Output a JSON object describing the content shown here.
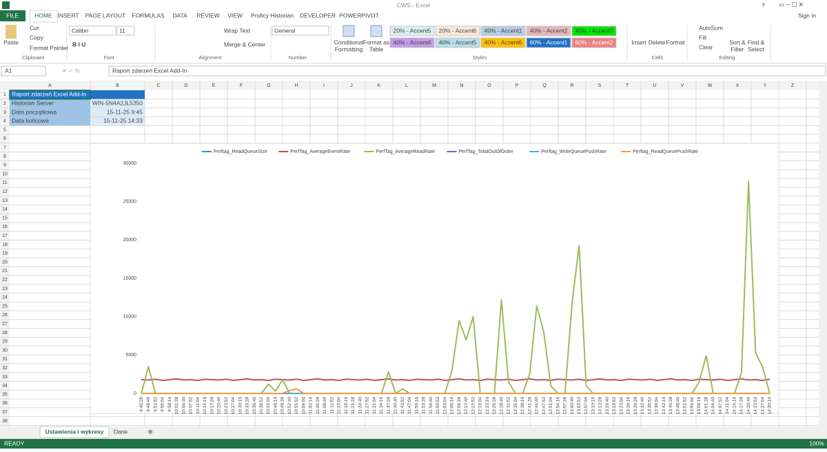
{
  "window": {
    "title": "CWS - Excel",
    "help": "?",
    "sign_in": "Sign in"
  },
  "tabs": [
    "FILE",
    "HOME",
    "INSERT",
    "PAGE LAYOUT",
    "FORMULAS",
    "DATA",
    "REVIEW",
    "VIEW",
    "Proficy Historian",
    "DEVELOPER",
    "POWERPIVOT"
  ],
  "ribbon": {
    "clipboard": {
      "paste": "Paste",
      "cut": "Cut",
      "copy": "Copy",
      "format_painter": "Format Painter",
      "label": "Clipboard"
    },
    "font": {
      "name": "Calibri",
      "size": "11",
      "label": "Font"
    },
    "alignment": {
      "wrap_text": "Wrap Text",
      "merge": "Merge & Center",
      "label": "Alignment"
    },
    "number": {
      "format": "General",
      "label": "Number"
    },
    "styles": {
      "conditional": [
        "Conditional",
        "Formatting"
      ],
      "format_table": [
        "Format as",
        "Table"
      ],
      "gallery": [
        "20% - Accent5",
        "20% - Accent6",
        "40% - Accent1",
        "40% - Accent2",
        "40% - Accent3",
        "40% - Accent4",
        "40% - Accent5",
        "40% - Accent6",
        "60% - Accent1",
        "60% - Accent2"
      ],
      "label": "Styles"
    },
    "cells": {
      "insert": "Insert",
      "delete": "Delete",
      "format": "Format",
      "label": "Cells"
    },
    "editing": {
      "autosum": "AutoSum",
      "fill": "Fill",
      "clear": "Clear",
      "sort": [
        "Sort &",
        "Filter"
      ],
      "find": [
        "Find &",
        "Select"
      ],
      "label": "Editing"
    }
  },
  "formula_bar": {
    "name_box": "A1",
    "content": "Raport zdarzeń Excel Add-In"
  },
  "columns": [
    "A",
    "B",
    "C",
    "D",
    "E",
    "F",
    "G",
    "H",
    "I",
    "J",
    "K",
    "L",
    "M",
    "N",
    "O",
    "P",
    "Q",
    "R",
    "S",
    "T",
    "U",
    "V",
    "W",
    "X",
    "Y",
    "Z"
  ],
  "rows": [
    1,
    2,
    3,
    4,
    5,
    6,
    7,
    8,
    9,
    10,
    11,
    12,
    13,
    14,
    15,
    16,
    17,
    18,
    19,
    20,
    21,
    22,
    23,
    24,
    25,
    26,
    27,
    28,
    29,
    30,
    31,
    32,
    33,
    34,
    35,
    36,
    37,
    38
  ],
  "sheet": {
    "a1": "Raport zdarzeń Excel Add-In",
    "a2": "Historian Server",
    "b2": "WIN-5N4A2JL5350",
    "a3": "Data początkowa",
    "b3": "15-11-25 9:45",
    "a4": "Data końcowa",
    "b4": "15-11-25 14:33"
  },
  "sheet_tabs": [
    "Ustawienia i wykresy",
    "Dane"
  ],
  "status": {
    "ready": "READY",
    "zoom": "100%"
  },
  "chart_data": {
    "type": "line",
    "categories": [
      "9:45:28",
      "9:48:40",
      "9:51:52",
      "9:55:04",
      "9:58:16",
      "10:01:28",
      "10:04:40",
      "10:07:52",
      "10:11:04",
      "10:14:16",
      "10:17:28",
      "10:20:40",
      "10:23:52",
      "10:27:04",
      "10:30:16",
      "10:33:28",
      "10:36:40",
      "10:39:52",
      "10:43:04",
      "10:46:16",
      "10:49:28",
      "10:52:40",
      "10:55:52",
      "10:59:04",
      "11:02:16",
      "11:05:28",
      "11:08:40",
      "11:11:52",
      "11:15:04",
      "11:18:16",
      "11:21:28",
      "11:24:40",
      "11:27:52",
      "11:31:04",
      "11:34:16",
      "11:37:28",
      "11:40:40",
      "11:43:52",
      "11:47:04",
      "11:50:16",
      "11:53:28",
      "11:56:40",
      "11:59:52",
      "12:03:04",
      "12:06:16",
      "12:09:28",
      "12:12:40",
      "12:15:52",
      "12:19:04",
      "12:22:16",
      "12:25:28",
      "12:28:40",
      "12:31:52",
      "12:35:04",
      "12:38:16",
      "12:41:28",
      "12:44:40",
      "12:47:52",
      "12:51:04",
      "12:54:16",
      "12:57:28",
      "13:00:40",
      "13:03:52",
      "13:07:04",
      "13:10:16",
      "13:13:28",
      "13:16:40",
      "13:19:52",
      "13:23:04",
      "13:26:16",
      "13:29:28",
      "13:32:40",
      "13:35:52",
      "13:39:04",
      "13:42:16",
      "13:45:28",
      "13:48:40",
      "13:51:52",
      "13:55:04",
      "13:58:16",
      "14:01:28",
      "14:04:40",
      "14:07:52",
      "14:11:04",
      "14:14:16",
      "14:17:28",
      "14:20:40",
      "14:23:52",
      "14:27:04",
      "14:30:16"
    ],
    "series": [
      {
        "name": "Perftag_ReadQueueSize",
        "color": "#4f81bd",
        "values": [
          0,
          0,
          0,
          0,
          0,
          0,
          0,
          0,
          0,
          0,
          0,
          0,
          0,
          0,
          0,
          0,
          0,
          0,
          0,
          0,
          0,
          0,
          0,
          0,
          0,
          0,
          0,
          0,
          0,
          0,
          0,
          0,
          0,
          0,
          0,
          0,
          0,
          0,
          0,
          0,
          0,
          0,
          0,
          0,
          0,
          0,
          0,
          0,
          0,
          0,
          0,
          0,
          0,
          0,
          0,
          0,
          0,
          0,
          0,
          0,
          0,
          0,
          0,
          0,
          0,
          0,
          0,
          0,
          0,
          0,
          0,
          0,
          0,
          0,
          0,
          0,
          0,
          0,
          0,
          0,
          0,
          0,
          0,
          0,
          0,
          0,
          0,
          0,
          0,
          0
        ]
      },
      {
        "name": "PerfTag_AverageEventRate",
        "color": "#c0504d",
        "values": [
          1800,
          1750,
          1850,
          1700,
          1800,
          1900,
          1750,
          1800,
          1700,
          1850,
          1800,
          1750,
          1850,
          1700,
          1800,
          1900,
          1750,
          1800,
          1700,
          1850,
          1800,
          1750,
          1850,
          1700,
          1800,
          1900,
          1750,
          1800,
          1700,
          1850,
          1800,
          1750,
          1850,
          1700,
          1800,
          1900,
          1750,
          1800,
          1700,
          1850,
          1800,
          1750,
          1850,
          1700,
          1800,
          1900,
          1750,
          1800,
          1700,
          1850,
          1800,
          1750,
          1850,
          1700,
          1800,
          1900,
          1750,
          1800,
          1700,
          1850,
          1800,
          1750,
          1850,
          1700,
          1800,
          1900,
          1750,
          1800,
          1700,
          1850,
          1800,
          1750,
          1850,
          1700,
          1800,
          1900,
          1750,
          1800,
          1700,
          1850,
          1800,
          1750,
          1850,
          1700,
          1800,
          1900,
          1750,
          1800,
          1700,
          1850
        ]
      },
      {
        "name": "PerfTag_AverageReadRate",
        "color": "#9bbb59",
        "values": [
          0,
          3500,
          0,
          0,
          0,
          0,
          0,
          0,
          0,
          0,
          0,
          0,
          0,
          0,
          0,
          0,
          0,
          0,
          1200,
          300,
          1800,
          0,
          0,
          0,
          0,
          0,
          0,
          0,
          0,
          0,
          0,
          0,
          0,
          0,
          0,
          2800,
          0,
          600,
          0,
          0,
          0,
          0,
          0,
          0,
          3000,
          9500,
          7000,
          10000,
          0,
          0,
          0,
          12200,
          1500,
          0,
          0,
          2500,
          11400,
          8000,
          1000,
          0,
          0,
          11700,
          19300,
          1000,
          0,
          0,
          0,
          0,
          0,
          0,
          0,
          0,
          0,
          0,
          0,
          0,
          0,
          0,
          0,
          1500,
          4900,
          0,
          0,
          0,
          0,
          2700,
          27600,
          5300,
          3400,
          0
        ]
      },
      {
        "name": "PerfTag_TotalOutOfOrder",
        "color": "#8064a2",
        "values": [
          0,
          0,
          0,
          0,
          0,
          0,
          0,
          0,
          0,
          0,
          0,
          0,
          0,
          0,
          0,
          0,
          0,
          0,
          0,
          0,
          0,
          0,
          0,
          0,
          0,
          0,
          0,
          0,
          0,
          0,
          0,
          0,
          0,
          0,
          0,
          0,
          0,
          0,
          0,
          0,
          0,
          0,
          0,
          0,
          0,
          0,
          0,
          0,
          0,
          0,
          0,
          0,
          0,
          0,
          0,
          0,
          0,
          0,
          0,
          0,
          0,
          0,
          0,
          0,
          0,
          0,
          0,
          0,
          0,
          0,
          0,
          0,
          0,
          0,
          0,
          0,
          0,
          0,
          0,
          0,
          0,
          0,
          0,
          0,
          0,
          0,
          0,
          0,
          0,
          0
        ]
      },
      {
        "name": "Perftag_WriteQueuePushRate",
        "color": "#4bacc6",
        "values": [
          0,
          0,
          0,
          0,
          0,
          0,
          0,
          0,
          0,
          0,
          0,
          0,
          0,
          0,
          0,
          0,
          0,
          0,
          0,
          0,
          0,
          0,
          0,
          0,
          0,
          0,
          0,
          0,
          0,
          0,
          0,
          0,
          0,
          0,
          0,
          0,
          0,
          0,
          0,
          0,
          0,
          0,
          0,
          0,
          0,
          0,
          0,
          0,
          0,
          0,
          0,
          0,
          0,
          0,
          0,
          0,
          0,
          0,
          0,
          0,
          0,
          0,
          0,
          0,
          0,
          0,
          0,
          0,
          0,
          0,
          0,
          0,
          0,
          0,
          0,
          0,
          0,
          0,
          0,
          0,
          0,
          0,
          0,
          0,
          0,
          0,
          0,
          0,
          0,
          0
        ]
      },
      {
        "name": "Perftag_ReadQueuePushRate",
        "color": "#f79646",
        "values": [
          0,
          0,
          0,
          0,
          0,
          0,
          0,
          0,
          0,
          0,
          0,
          0,
          0,
          0,
          0,
          0,
          0,
          0,
          0,
          0,
          0,
          400,
          600,
          0,
          0,
          0,
          0,
          0,
          0,
          0,
          0,
          0,
          0,
          0,
          0,
          0,
          0,
          0,
          0,
          0,
          0,
          0,
          0,
          0,
          0,
          0,
          0,
          0,
          0,
          0,
          0,
          0,
          0,
          0,
          0,
          0,
          0,
          0,
          0,
          0,
          0,
          0,
          0,
          0,
          0,
          0,
          0,
          0,
          0,
          0,
          0,
          0,
          0,
          0,
          0,
          0,
          0,
          0,
          0,
          0,
          0,
          0,
          0,
          0,
          0,
          0,
          0,
          0,
          0,
          0
        ]
      }
    ],
    "ylim": [
      0,
      30000
    ],
    "yticks": [
      0,
      5000,
      10000,
      15000,
      20000,
      25000,
      30000
    ],
    "grid": false,
    "legend": "top"
  }
}
